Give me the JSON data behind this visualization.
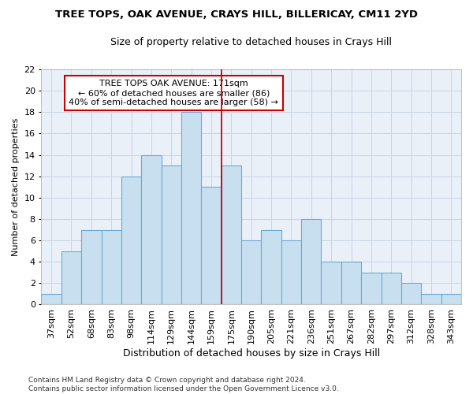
{
  "title": "TREE TOPS, OAK AVENUE, CRAYS HILL, BILLERICAY, CM11 2YD",
  "subtitle": "Size of property relative to detached houses in Crays Hill",
  "xlabel": "Distribution of detached houses by size in Crays Hill",
  "ylabel": "Number of detached properties",
  "categories": [
    "37sqm",
    "52sqm",
    "68sqm",
    "83sqm",
    "98sqm",
    "114sqm",
    "129sqm",
    "144sqm",
    "159sqm",
    "175sqm",
    "190sqm",
    "205sqm",
    "221sqm",
    "236sqm",
    "251sqm",
    "267sqm",
    "282sqm",
    "297sqm",
    "312sqm",
    "328sqm",
    "343sqm"
  ],
  "values": [
    1,
    5,
    7,
    7,
    12,
    14,
    13,
    18,
    11,
    13,
    6,
    7,
    6,
    8,
    4,
    4,
    3,
    3,
    2,
    1,
    1
  ],
  "bar_color": "#c8dff0",
  "bar_edge_color": "#6aaad4",
  "grid_color": "#c8d4e8",
  "background_color": "#eaf0f8",
  "vline_color": "#cc0000",
  "annotation_text": "TREE TOPS OAK AVENUE: 171sqm\n← 60% of detached houses are smaller (86)\n40% of semi-detached houses are larger (58) →",
  "annotation_box_color": "#ffffff",
  "annotation_box_edge": "#cc0000",
  "ylim": [
    0,
    22
  ],
  "yticks": [
    0,
    2,
    4,
    6,
    8,
    10,
    12,
    14,
    16,
    18,
    20,
    22
  ],
  "footer": "Contains HM Land Registry data © Crown copyright and database right 2024.\nContains public sector information licensed under the Open Government Licence v3.0.",
  "title_fontsize": 9.5,
  "subtitle_fontsize": 9,
  "xlabel_fontsize": 9,
  "ylabel_fontsize": 8,
  "tick_fontsize": 8,
  "footer_fontsize": 6.5,
  "annotation_fontsize": 8
}
